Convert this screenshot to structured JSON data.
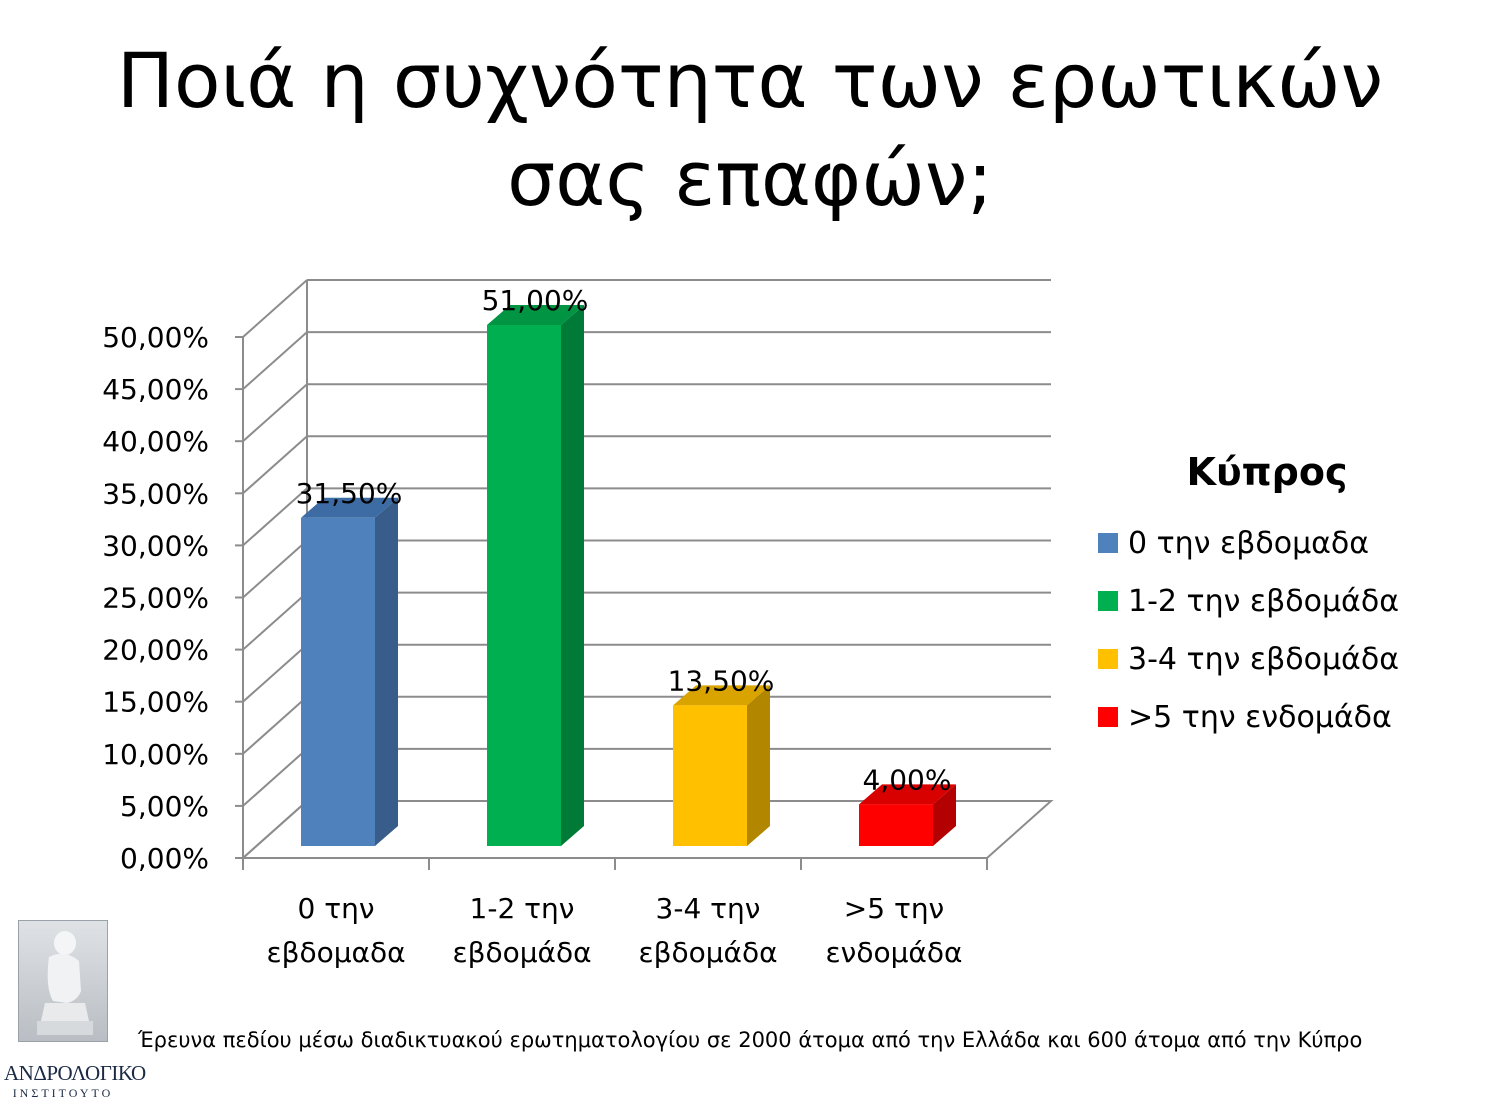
{
  "slide": {
    "title": "Ποιά η συχνότητα των ερωτικών σας επαφών;",
    "footnote": "Έρευνα πεδίου μέσω διαδικτυακού ερωτηματολογίου σε 2000 άτομα από την Ελλάδα και 600 άτομα από την Κύπρο",
    "logo": {
      "text": "ΑΝΔΡΟΛΟΓΙΚΟ",
      "subtext": "ΙΝΣΤΙΤΟΥΤΟ",
      "icon": "thinker-statue-icon"
    }
  },
  "chart_data": {
    "type": "bar",
    "style": "3d-column",
    "categories": [
      [
        "0 την",
        "εβδομαδα"
      ],
      [
        "1-2 την",
        "εβδομάδα"
      ],
      [
        "3-4 την",
        "εβδομάδα"
      ],
      [
        ">5 την",
        "ενδομάδα"
      ]
    ],
    "values": [
      31.5,
      51.0,
      13.5,
      4.0
    ],
    "data_labels": [
      "31,50%",
      "51,00%",
      "13,50%",
      "4,00%"
    ],
    "colors": [
      "#4f81bd",
      "#00b050",
      "#ffc000",
      "#ff0000"
    ],
    "side_colors": [
      "#385d8a",
      "#007a37",
      "#b38600",
      "#b30000"
    ],
    "top_colors": [
      "#3d6ba3",
      "#009443",
      "#d9a300",
      "#d90000"
    ],
    "ylim": [
      0,
      50
    ],
    "y_ticks": [
      "0,00%",
      "5,00%",
      "10,00%",
      "15,00%",
      "20,00%",
      "25,00%",
      "30,00%",
      "35,00%",
      "40,00%",
      "45,00%",
      "50,00%"
    ],
    "grid": true,
    "legend": {
      "title": "Κύπρος",
      "position": "right",
      "entries": [
        "0 την εβδομαδα",
        "1-2 την εβδομάδα",
        "3-4 την εβδομάδα",
        ">5 την ενδομάδα"
      ]
    }
  }
}
